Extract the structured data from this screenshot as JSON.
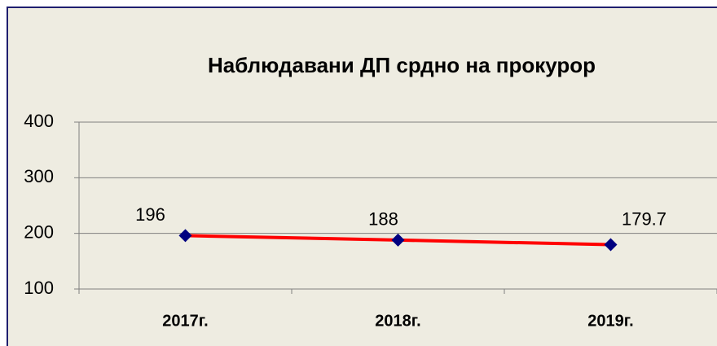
{
  "chart_data": {
    "type": "line",
    "title": "Наблюдавани ДП срдно на прокурор",
    "categories": [
      "2017г.",
      "2018г.",
      "2019г."
    ],
    "series": [
      {
        "name": "Наблюдавани ДП срдно на прокурор",
        "color": "#ff0000",
        "marker_color": "#000080",
        "values": [
          196,
          188,
          179.7
        ]
      }
    ],
    "ylim": [
      100,
      400
    ],
    "yticks": [
      100,
      200,
      300,
      400
    ],
    "grid": true
  }
}
